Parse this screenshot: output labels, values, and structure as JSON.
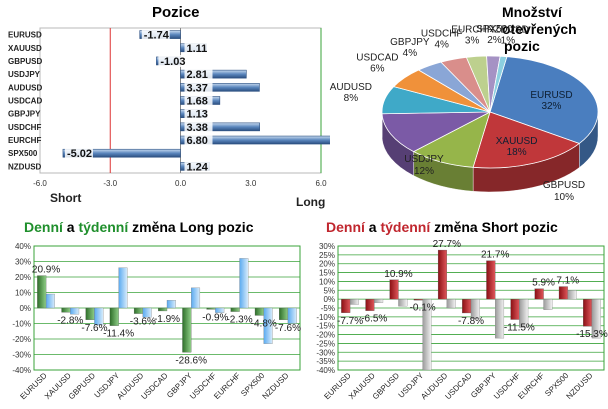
{
  "colors": {
    "green": "#1f8f2c",
    "red": "#c0262e",
    "long_bar": "#5a86bd",
    "grid": "#3aa33a",
    "neg_bar": "#2e5e94",
    "weekly_bar": "#6db6f2",
    "daily_long": "#3d8a35",
    "daily_short": "#b61f24",
    "weekly_short": "#d2d2d2"
  },
  "chart_data": [
    {
      "type": "bar",
      "orientation": "horizontal",
      "title": "Pozice",
      "categories": [
        "EURUSD",
        "XAUUSD",
        "GBPUSD",
        "USDJPY",
        "AUDUSD",
        "USDCAD",
        "GBPJPY",
        "USDCHF",
        "EURCHF",
        "SPX500",
        "NZDUSD"
      ],
      "values": [
        -1.74,
        1.11,
        -1.03,
        2.81,
        3.37,
        1.68,
        1.13,
        3.38,
        6.8,
        -5.02,
        1.24
      ],
      "value_labels": [
        "-1.74",
        "1.11",
        "-1.03",
        "2.81",
        "3.37",
        "1.68",
        "1.13",
        "3.38",
        "6.80",
        "-5.02",
        "1.24"
      ],
      "xlim": [
        -6,
        6
      ],
      "ticks": [
        "-6.0",
        "-3.0",
        "0.0",
        "3.0",
        "6.0"
      ],
      "left_label": "Short",
      "right_label": "Long"
    },
    {
      "type": "pie",
      "title_lines": [
        "Množství",
        "otevřených",
        "pozic"
      ],
      "slices": [
        {
          "name": "EURUSD",
          "value": 32,
          "label": "32%",
          "color": "#4a7ebf"
        },
        {
          "name": "XAUUSD",
          "value": 18,
          "label": "18%",
          "color": "#c0373a"
        },
        {
          "name": "GBPUSD",
          "value": 10,
          "label": "10%",
          "color": "#96b54a"
        },
        {
          "name": "USDJPY",
          "value": 12,
          "label": "12%",
          "color": "#7b5aa6"
        },
        {
          "name": "AUDUSD",
          "value": 8,
          "label": "8%",
          "color": "#3fa9c8"
        },
        {
          "name": "USDCAD",
          "value": 6,
          "label": "6%",
          "color": "#f0913a"
        },
        {
          "name": "GBPJPY",
          "value": 4,
          "label": "4%",
          "color": "#8aa6d6"
        },
        {
          "name": "USDCHF",
          "value": 4,
          "label": "4%",
          "color": "#d98e8b"
        },
        {
          "name": "EURCHF",
          "value": 3,
          "label": "3%",
          "color": "#bdd08e"
        },
        {
          "name": "SPX500",
          "value": 2,
          "label": "2%",
          "color": "#a592c4"
        },
        {
          "name": "NZDUSD",
          "value": 1,
          "label": "1%",
          "color": "#8ccfe0"
        }
      ]
    },
    {
      "type": "bar",
      "title_parts": [
        "Denní",
        " a ",
        "týdenní",
        " změna Long pozic"
      ],
      "categories": [
        "EURUSD",
        "XAUUSD",
        "GBPUSD",
        "USDJPY",
        "AUDUSD",
        "USDCAD",
        "GBPJPY",
        "USDCHF",
        "EURCHF",
        "SPX500",
        "NZDUSD"
      ],
      "series": [
        {
          "values": [
            20.9,
            -2.8,
            -7.6,
            -11.4,
            -3.6,
            -1.9,
            -28.6,
            -0.9,
            -2.3,
            -4.8,
            -7.6
          ]
        },
        {
          "values": [
            9,
            -4,
            -11,
            26,
            -6,
            5,
            13,
            -3,
            32,
            -23,
            -10
          ]
        }
      ],
      "value_labels": [
        "20.9%",
        "-2.8%",
        "-7.6%",
        "-11.4%",
        "-3.6%",
        "-1.9%",
        "-28.6%",
        "-0.9%",
        "-2.3%",
        "-4.8%",
        "-7.6%"
      ],
      "ylim": [
        -40,
        40
      ],
      "ticks": [
        "40%",
        "30%",
        "20%",
        "10%",
        "0%",
        "-10%",
        "-20%",
        "-30%",
        "-40%"
      ]
    },
    {
      "type": "bar",
      "title_parts": [
        "Denní",
        " a ",
        "týdenní",
        " změna Short pozic"
      ],
      "categories": [
        "EURUSD",
        "XAUUSD",
        "GBPUSD",
        "USDJPY",
        "AUDUSD",
        "USDCAD",
        "GBPJPY",
        "USDCHF",
        "EURCHF",
        "SPX500",
        "NZDUSD"
      ],
      "series": [
        {
          "values": [
            -7.7,
            -6.5,
            10.9,
            -0.1,
            27.7,
            -7.8,
            21.7,
            -11.5,
            5.9,
            7.1,
            -15.3
          ]
        },
        {
          "values": [
            -3,
            -2,
            -4,
            -40,
            -5,
            -11,
            -22,
            -16,
            -6,
            5,
            -22
          ]
        }
      ],
      "value_labels": [
        "-7.7%",
        "-6.5%",
        "10.9%",
        "-0.1%",
        "27.7%",
        "-7.8%",
        "21.7%",
        "-11.5%",
        "5.9%",
        "7.1%",
        "-15.3%"
      ],
      "ylim": [
        -40,
        30
      ],
      "ticks": [
        "30%",
        "25%",
        "20%",
        "15%",
        "10%",
        "5%",
        "0%",
        "-5%",
        "-10%",
        "-15%",
        "-20%",
        "-25%",
        "-30%",
        "-35%",
        "-40%"
      ]
    }
  ]
}
